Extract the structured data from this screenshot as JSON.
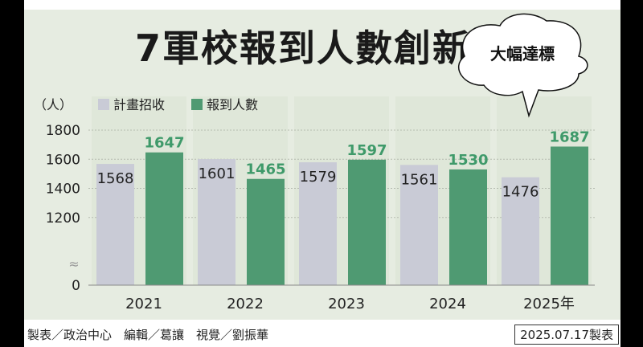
{
  "title": "7軍校報到人數創新高",
  "credit": "製表／政治中心　編輯／葛讓　視覺／劉振華",
  "date_stamp": "2025.07.17製表",
  "callout": "大幅達標",
  "colors": {
    "planned": "#c9cbd6",
    "reported": "#4f9a72",
    "reported_label": "#3f9a6a",
    "panel": "#e6ece1"
  },
  "chart_data": {
    "type": "bar",
    "title": "7軍校報到人數創新高",
    "ylabel": "（人）",
    "categories": [
      "2021",
      "2022",
      "2023",
      "2024",
      "2025年"
    ],
    "series": [
      {
        "name": "計畫招收",
        "values": [
          1568,
          1601,
          1579,
          1561,
          1476
        ]
      },
      {
        "name": "報到人數",
        "values": [
          1647,
          1465,
          1597,
          1530,
          1687
        ]
      }
    ],
    "yticks": [
      "1800",
      "1600",
      "1400",
      "1200",
      "0"
    ],
    "ylim": [
      1000,
      1800
    ],
    "axis_break": true,
    "grid": true,
    "legend": "top-left"
  }
}
